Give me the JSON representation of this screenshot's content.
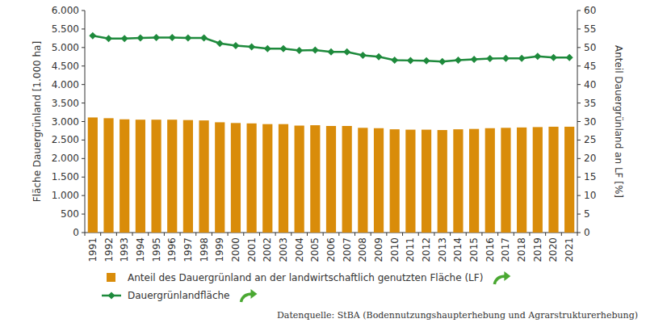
{
  "chart_data": {
    "type": "bar",
    "categories": [
      "1991",
      "1992",
      "1993",
      "1994",
      "1995",
      "1996",
      "1997",
      "1998",
      "1999",
      "2000",
      "2001",
      "2002",
      "2003",
      "2004",
      "2005",
      "2006",
      "2007",
      "2008",
      "2009",
      "2010",
      "2011",
      "2012",
      "2013",
      "2014",
      "2015",
      "2016",
      "2017",
      "2018",
      "2019",
      "2020",
      "2021"
    ],
    "y_label": "Fläche Dauergrünland [1.000 ha]",
    "y2_label": "Anteil Dauergrünland an LF [%]",
    "source": "Datenquelle: StBA (Bodennutzungshaupterhebung und Agrarstrukturerhebung)",
    "ylim": [
      0,
      6000
    ],
    "yticks": [
      0,
      500,
      {
        "value": 1000,
        "label": "1.000"
      },
      {
        "value": 1500,
        "label": "1.500"
      },
      {
        "value": 2000,
        "label": "2.000"
      },
      {
        "value": 2500,
        "label": "2.500"
      },
      {
        "value": 3000,
        "label": "3.000"
      },
      {
        "value": 3500,
        "label": "3.500"
      },
      {
        "value": 4000,
        "label": "4.000"
      },
      {
        "value": 4500,
        "label": "4.500"
      },
      {
        "value": 5000,
        "label": "5.000"
      },
      {
        "value": 5500,
        "label": "5.500"
      },
      {
        "value": 6000,
        "label": "6.000"
      }
    ],
    "y2lim": [
      0,
      60
    ],
    "y2ticks": [
      0,
      5,
      10,
      15,
      20,
      25,
      30,
      35,
      40,
      45,
      50,
      55,
      60
    ],
    "grid": false,
    "legend": "bottom",
    "series": [
      {
        "name": "Anteil des Dauergrünland an der landwirtschaftlich genutzten Fläche (LF)",
        "type": "bar",
        "axis": "y2",
        "color": "#d98c0a",
        "values": [
          31.1,
          30.9,
          30.6,
          30.5,
          30.5,
          30.5,
          30.4,
          30.3,
          29.8,
          29.6,
          29.5,
          29.3,
          29.3,
          28.9,
          29.0,
          28.8,
          28.8,
          28.3,
          28.2,
          27.9,
          27.8,
          27.8,
          27.7,
          27.9,
          28.0,
          28.2,
          28.3,
          28.4,
          28.5,
          28.6,
          28.6
        ]
      },
      {
        "name": "Dauergrünlandfläche",
        "type": "line",
        "axis": "y",
        "color": "#1e8a3c",
        "marker": "diamond",
        "line_style": "solid",
        "values": [
          5320,
          5240,
          5240,
          5260,
          5270,
          5270,
          5260,
          5260,
          5110,
          5050,
          5020,
          4970,
          4970,
          4920,
          4930,
          4880,
          4880,
          4790,
          4750,
          4660,
          4650,
          4640,
          4620,
          4660,
          4680,
          4700,
          4710,
          4710,
          4760,
          4730,
          4730
        ]
      }
    ]
  }
}
